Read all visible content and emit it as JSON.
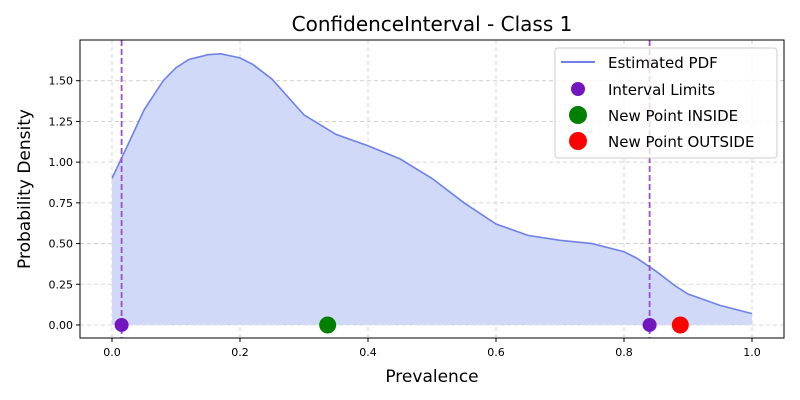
{
  "chart_data": {
    "type": "area",
    "title": "ConfidenceInterval - Class 1",
    "xlabel": "Prevalence",
    "ylabel": "Probability Density",
    "xlim": [
      -0.05,
      1.05
    ],
    "ylim": [
      -0.08,
      1.75
    ],
    "xticks": [
      0.0,
      0.2,
      0.4,
      0.6,
      0.8,
      1.0
    ],
    "xtick_labels": [
      "0.0",
      "0.2",
      "0.4",
      "0.6",
      "0.8",
      "1.0"
    ],
    "yticks": [
      0.0,
      0.25,
      0.5,
      0.75,
      1.0,
      1.25,
      1.5
    ],
    "ytick_labels": [
      "0.00",
      "0.25",
      "0.50",
      "0.75",
      "1.00",
      "1.25",
      "1.50"
    ],
    "grid": true,
    "legend_position": "top-right",
    "pdf": {
      "name": "Estimated PDF",
      "color": "#7080e6",
      "fill_color": "#d0d9f8",
      "x": [
        0.0,
        0.03,
        0.05,
        0.08,
        0.1,
        0.12,
        0.15,
        0.17,
        0.2,
        0.22,
        0.25,
        0.3,
        0.35,
        0.4,
        0.45,
        0.5,
        0.55,
        0.6,
        0.65,
        0.7,
        0.75,
        0.8,
        0.82,
        0.85,
        0.88,
        0.9,
        0.95,
        1.0
      ],
      "y": [
        0.9,
        1.15,
        1.32,
        1.5,
        1.58,
        1.63,
        1.66,
        1.665,
        1.64,
        1.6,
        1.51,
        1.29,
        1.17,
        1.1,
        1.02,
        0.9,
        0.75,
        0.62,
        0.55,
        0.52,
        0.5,
        0.45,
        0.41,
        0.33,
        0.24,
        0.19,
        0.12,
        0.07
      ]
    },
    "interval_limits": {
      "name": "Interval Limits",
      "color": "#7216c0",
      "line_color": "#9b4fc9",
      "x": [
        0.015,
        0.84
      ],
      "y": [
        0.0,
        0.0
      ]
    },
    "point_inside": {
      "name": "New Point INSIDE",
      "color": "#008000",
      "x": 0.337,
      "y": 0.0
    },
    "point_outside": {
      "name": "New Point OUTSIDE",
      "color": "#ff0000",
      "x": 0.888,
      "y": 0.0
    }
  }
}
